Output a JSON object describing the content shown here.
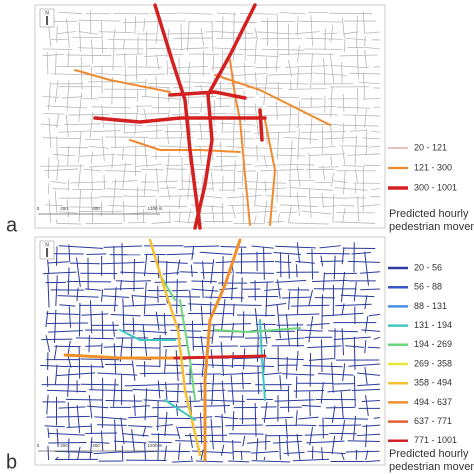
{
  "panels": [
    {
      "label": "a",
      "north": "N",
      "scale_labels": [
        "0",
        "200",
        "400",
        "1200 m"
      ],
      "legend": [
        {
          "label": "20 - 121",
          "color": "#d99a9a"
        },
        {
          "label": "121 - 300",
          "color": "#f08a30"
        },
        {
          "label": "300 - 1001",
          "color": "#d42020"
        }
      ],
      "legend_title": [
        "Predicted hourly",
        "pedestrian movement"
      ]
    },
    {
      "label": "b",
      "north": "N",
      "scale_labels": [
        "0",
        "200",
        "400",
        "1200 m"
      ],
      "legend": [
        {
          "label": "20 - 56",
          "color": "#2b3a9c"
        },
        {
          "label": "56 - 88",
          "color": "#3a56c8"
        },
        {
          "label": "88 - 131",
          "color": "#4a8fe0"
        },
        {
          "label": "131 - 194",
          "color": "#3fc8c0"
        },
        {
          "label": "194 - 269",
          "color": "#6cd67a"
        },
        {
          "label": "269 - 358",
          "color": "#e8e83a"
        },
        {
          "label": "358 - 494",
          "color": "#f5c030"
        },
        {
          "label": "494 - 637",
          "color": "#f0902a"
        },
        {
          "label": "637 - 771",
          "color": "#e86030"
        },
        {
          "label": "771 - 1001",
          "color": "#d42020"
        }
      ],
      "legend_title": [
        "Predicted hourly",
        "pedestrian movement"
      ]
    }
  ]
}
